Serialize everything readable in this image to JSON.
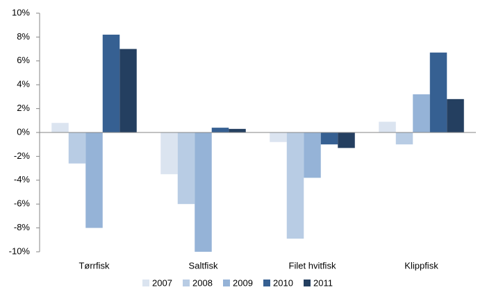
{
  "chart_data": {
    "type": "bar",
    "categories": [
      "Tørrfisk",
      "Saltfisk",
      "Filet hvitfisk",
      "Klippfisk"
    ],
    "series": [
      {
        "name": "2007",
        "color": "#dbe4f0",
        "values": [
          0.8,
          -3.5,
          -0.8,
          0.9
        ]
      },
      {
        "name": "2008",
        "color": "#b8cce4",
        "values": [
          -2.6,
          -6.0,
          -8.9,
          -1.0
        ]
      },
      {
        "name": "2009",
        "color": "#95b3d7",
        "values": [
          -8.0,
          -10.0,
          -3.8,
          3.2
        ]
      },
      {
        "name": "2010",
        "color": "#366092",
        "values": [
          8.2,
          0.4,
          -1.0,
          6.7
        ]
      },
      {
        "name": "2011",
        "color": "#243f60",
        "values": [
          7.0,
          0.3,
          -1.3,
          2.8
        ]
      }
    ],
    "ylim": [
      -10,
      10
    ],
    "yticks": [
      {
        "value": -10,
        "label": "-10%"
      },
      {
        "value": -8,
        "label": "-8%"
      },
      {
        "value": -6,
        "label": "-6%"
      },
      {
        "value": -4,
        "label": "-4%"
      },
      {
        "value": -2,
        "label": "-2%"
      },
      {
        "value": 0,
        "label": "0%"
      },
      {
        "value": 2,
        "label": "2%"
      },
      {
        "value": 4,
        "label": "4%"
      },
      {
        "value": 6,
        "label": "6%"
      },
      {
        "value": 8,
        "label": "8%"
      },
      {
        "value": 10,
        "label": "10%"
      }
    ],
    "legend": "bottom"
  }
}
